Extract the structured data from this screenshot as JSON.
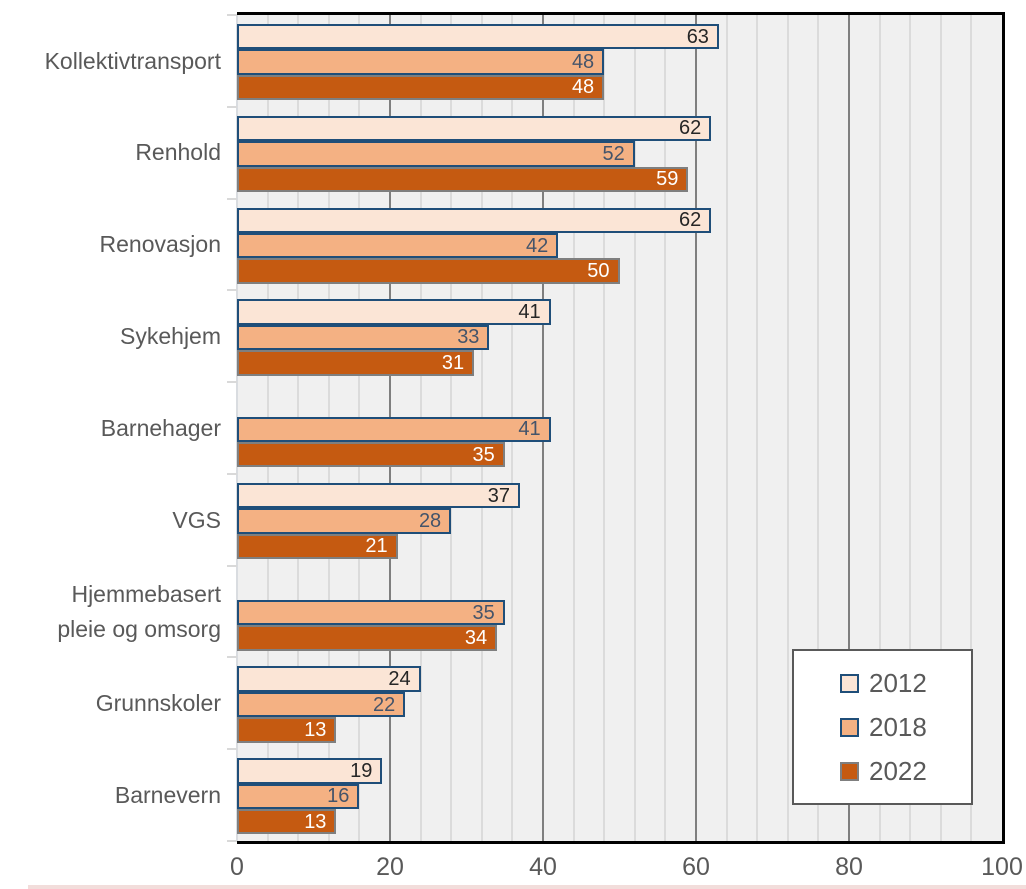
{
  "chart_data": {
    "type": "bar",
    "orientation": "horizontal",
    "title": "",
    "xlabel": "",
    "ylabel": "",
    "categories": [
      "Kollektivtransport",
      "Renhold",
      "Renovasjon",
      "Sykehjem",
      "Barnehager",
      "VGS",
      "Hjemmebasert\npleie og omsorg",
      "Grunnskoler",
      "Barnevern"
    ],
    "series": [
      {
        "name": "2012",
        "values": [
          63,
          62,
          62,
          41,
          null,
          37,
          null,
          24,
          19
        ]
      },
      {
        "name": "2018",
        "values": [
          48,
          52,
          42,
          33,
          41,
          28,
          35,
          22,
          16
        ]
      },
      {
        "name": "2022",
        "values": [
          48,
          59,
          50,
          31,
          35,
          21,
          34,
          13,
          13
        ]
      }
    ],
    "xlim": [
      0,
      100
    ],
    "x_tick_labels": [
      "0",
      "20",
      "40",
      "60",
      "80",
      "100"
    ],
    "major_unit": 20,
    "minor_unit": 4,
    "grid": true,
    "data_labels": "inside-end",
    "legend_position": "inside-bottom-right"
  },
  "legend": {
    "entries": [
      "2012",
      "2018",
      "2022"
    ]
  },
  "styles": {
    "series_fill": [
      "#FBE5D6",
      "#F4B183",
      "#C55A11"
    ],
    "series_border": [
      "#1F4E79",
      "#1F4E79",
      "#7F7F7F"
    ],
    "series_label_color": [
      "#262626",
      "#44546A",
      "#FFFFFF"
    ],
    "plot_background": "#F0F0F0",
    "major_gridline": "#7F7F7F",
    "minor_gridline": "#DBDBDB",
    "axis_text": "#595959",
    "plot_border": "#000000",
    "legend_border": "#595959"
  }
}
